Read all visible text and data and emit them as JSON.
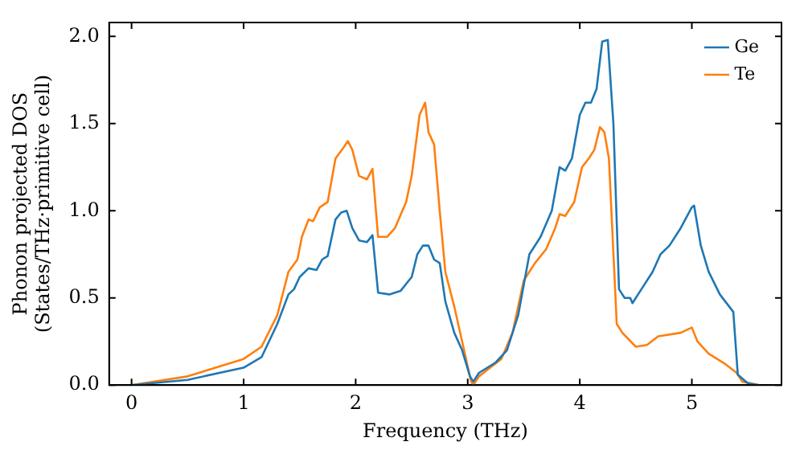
{
  "chart_data": {
    "type": "line",
    "xlabel": "Frequency (THz)",
    "ylabel": "Phonon projected DOS\n(States/THz·primitive cell)",
    "xlim": [
      -0.2,
      5.8
    ],
    "ylim": [
      0,
      2.08
    ],
    "xticks": [
      0,
      1,
      2,
      3,
      4,
      5
    ],
    "yticks": [
      {
        "value": 0,
        "label": "0.0"
      },
      {
        "value": 0.5,
        "label": "0.5"
      },
      {
        "value": 1,
        "label": "1.0"
      },
      {
        "value": 1.5,
        "label": "1.5"
      },
      {
        "value": 2,
        "label": "2.0"
      }
    ],
    "grid": false,
    "legend": "top right",
    "marker": "none",
    "line_style": "solid",
    "series": [
      {
        "name": "Ge",
        "color": "#1f77b4",
        "x": [
          0,
          0.5,
          1.0,
          1.16,
          1.3,
          1.4,
          1.45,
          1.5,
          1.58,
          1.65,
          1.7,
          1.75,
          1.82,
          1.87,
          1.92,
          1.97,
          2.03,
          2.1,
          2.15,
          2.2,
          2.3,
          2.4,
          2.5,
          2.55,
          2.6,
          2.65,
          2.7,
          2.75,
          2.8,
          2.88,
          2.95,
          3.02,
          3.05,
          3.1,
          3.25,
          3.35,
          3.45,
          3.55,
          3.65,
          3.75,
          3.82,
          3.87,
          3.93,
          4.0,
          4.05,
          4.1,
          4.15,
          4.2,
          4.25,
          4.3,
          4.35,
          4.4,
          4.45,
          4.47,
          4.55,
          4.65,
          4.72,
          4.8,
          4.9,
          5.0,
          5.02,
          5.08,
          5.15,
          5.25,
          5.37,
          5.41,
          5.5,
          5.6
        ],
        "values": [
          0,
          0.03,
          0.1,
          0.16,
          0.35,
          0.52,
          0.55,
          0.62,
          0.67,
          0.66,
          0.72,
          0.74,
          0.95,
          0.99,
          1.0,
          0.9,
          0.83,
          0.82,
          0.86,
          0.53,
          0.52,
          0.54,
          0.62,
          0.75,
          0.8,
          0.8,
          0.72,
          0.7,
          0.48,
          0.3,
          0.2,
          0.05,
          0.02,
          0.07,
          0.13,
          0.2,
          0.4,
          0.75,
          0.85,
          1.0,
          1.25,
          1.23,
          1.3,
          1.55,
          1.62,
          1.62,
          1.7,
          1.97,
          1.98,
          1.5,
          0.55,
          0.5,
          0.5,
          0.47,
          0.55,
          0.65,
          0.75,
          0.8,
          0.9,
          1.02,
          1.03,
          0.8,
          0.65,
          0.52,
          0.42,
          0.06,
          0.01,
          0
        ]
      },
      {
        "name": "Te",
        "color": "#ff7f0e",
        "x": [
          0,
          0.5,
          1.0,
          1.16,
          1.3,
          1.4,
          1.48,
          1.52,
          1.58,
          1.62,
          1.68,
          1.75,
          1.82,
          1.9,
          1.93,
          1.97,
          2.03,
          2.1,
          2.15,
          2.2,
          2.28,
          2.35,
          2.45,
          2.5,
          2.57,
          2.62,
          2.65,
          2.7,
          2.75,
          2.8,
          2.88,
          2.95,
          3.03,
          3.05,
          3.1,
          3.2,
          3.3,
          3.4,
          3.5,
          3.6,
          3.7,
          3.78,
          3.82,
          3.87,
          3.95,
          4.02,
          4.08,
          4.13,
          4.18,
          4.22,
          4.26,
          4.33,
          4.38,
          4.5,
          4.6,
          4.7,
          4.9,
          5.0,
          5.05,
          5.15,
          5.3,
          5.4,
          5.45,
          5.6
        ],
        "values": [
          0,
          0.05,
          0.15,
          0.22,
          0.4,
          0.65,
          0.72,
          0.85,
          0.95,
          0.94,
          1.02,
          1.05,
          1.3,
          1.37,
          1.4,
          1.35,
          1.2,
          1.18,
          1.24,
          0.85,
          0.85,
          0.9,
          1.05,
          1.2,
          1.55,
          1.62,
          1.45,
          1.38,
          1.0,
          0.65,
          0.45,
          0.25,
          0.02,
          0,
          0.05,
          0.1,
          0.15,
          0.3,
          0.6,
          0.7,
          0.78,
          0.9,
          0.98,
          0.97,
          1.05,
          1.25,
          1.3,
          1.35,
          1.48,
          1.45,
          1.3,
          0.35,
          0.3,
          0.22,
          0.23,
          0.28,
          0.3,
          0.33,
          0.25,
          0.18,
          0.12,
          0.07,
          0.02,
          0
        ]
      }
    ]
  }
}
